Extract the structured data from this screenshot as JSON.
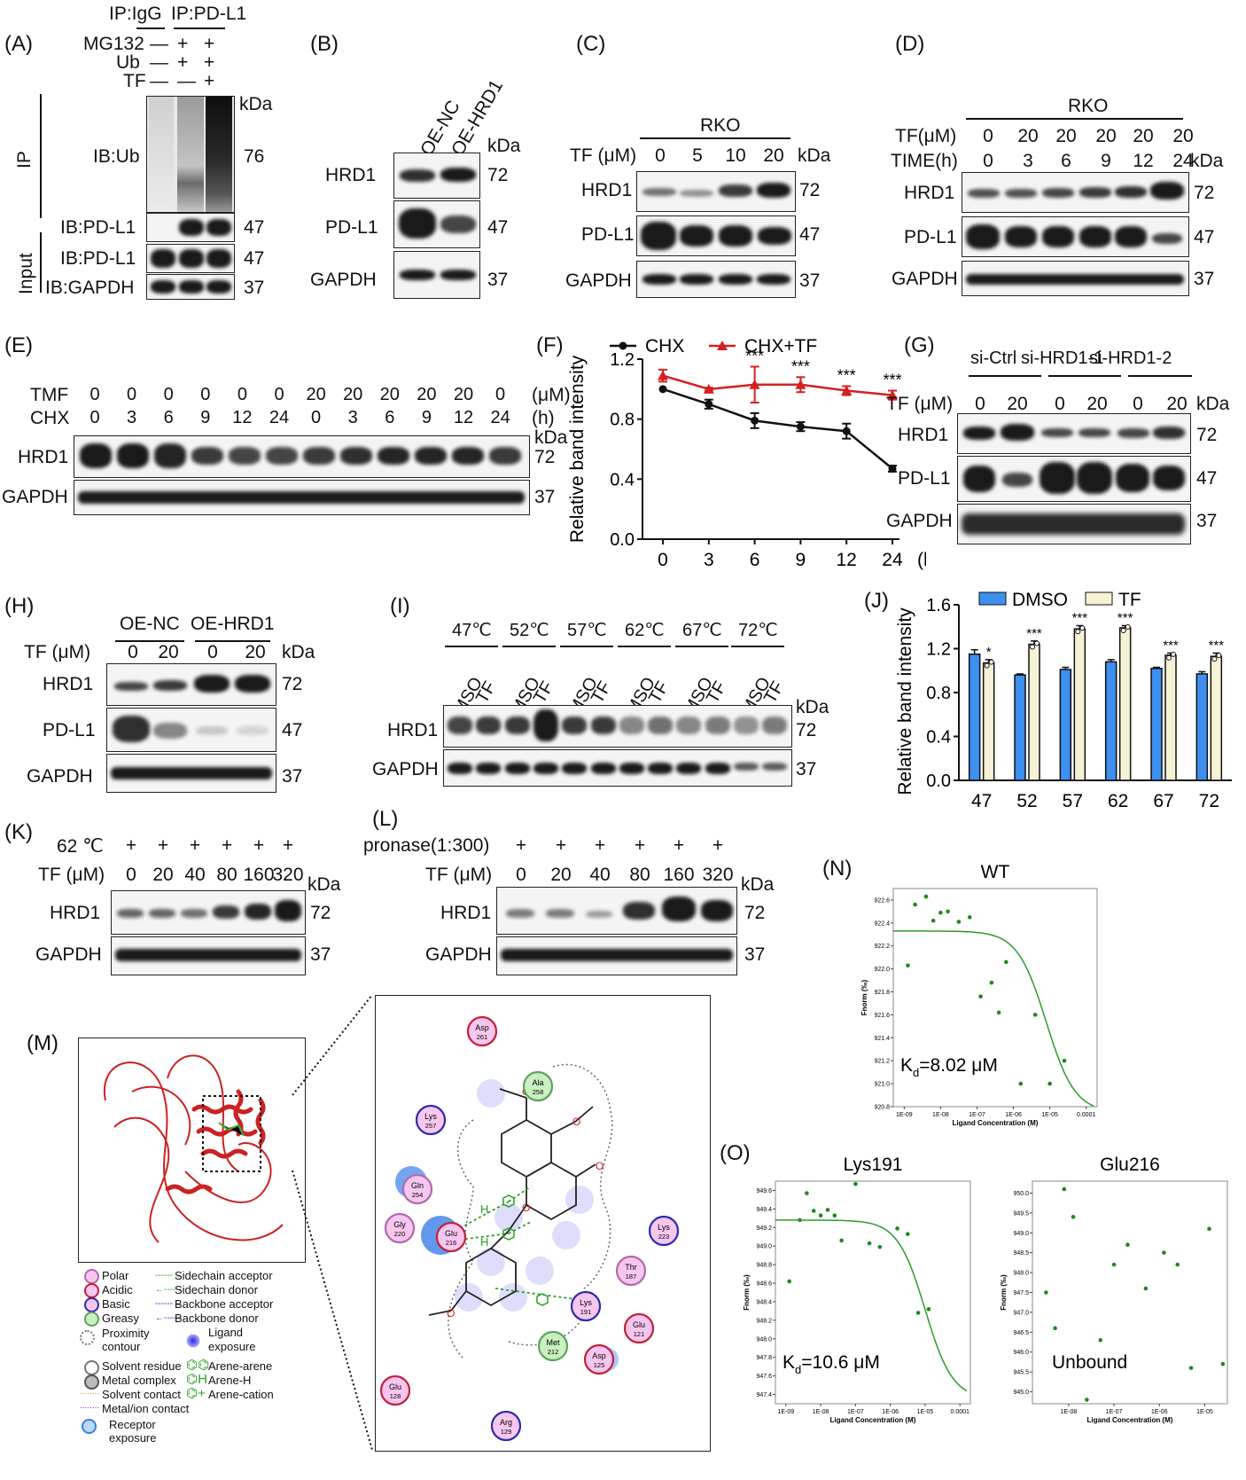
{
  "panels": {
    "A": "(A)",
    "B": "(B)",
    "C": "(C)",
    "D": "(D)",
    "E": "(E)",
    "F": "(F)",
    "G": "(G)",
    "H": "(H)",
    "I": "(I)",
    "J": "(J)",
    "K": "(K)",
    "L": "(L)",
    "M": "(M)",
    "N": "(N)",
    "O": "(O)"
  },
  "common": {
    "kda": "kDa",
    "k72": "72",
    "k47": "47",
    "k37": "37",
    "k76": "76",
    "hrd1": "HRD1",
    "pdl1": "PD-L1",
    "gapdh": "GAPDH"
  },
  "A": {
    "ip_igg": "IP:IgG",
    "ip_pdl1": "IP:PD-L1",
    "mg132": "MG132",
    "ub": "Ub",
    "tf": "TF",
    "mg132_vals": [
      "—",
      "+",
      "+"
    ],
    "ub_vals": [
      "—",
      "+",
      "+"
    ],
    "tf_vals": [
      "—",
      "—",
      "+"
    ],
    "ip": "IP",
    "input": "Input",
    "ib_ub": "IB:Ub",
    "ib_pdl1": "IB:PD-L1",
    "ib_pdl1_input": "IB:PD-L1",
    "ib_gapdh": "IB:GAPDH"
  },
  "B": {
    "oe_nc": "OE-NC",
    "oe_hrd1": "OE-HRD1"
  },
  "C": {
    "cell": "RKO",
    "tf_label": "TF (μM)",
    "doses": [
      "0",
      "5",
      "10",
      "20"
    ]
  },
  "D": {
    "cell": "RKO",
    "tf_label": "TF(μM)",
    "time_label": "TIME(h)",
    "tf_vals": [
      "0",
      "20",
      "20",
      "20",
      "20",
      "20"
    ],
    "time_vals": [
      "0",
      "3",
      "6",
      "9",
      "12",
      "24"
    ]
  },
  "E": {
    "tmf_label": "TMF",
    "chx_label": "CHX",
    "um": "(μM)",
    "h": "(h)",
    "tmf_vals": [
      "0",
      "0",
      "0",
      "0",
      "0",
      "0",
      "20",
      "20",
      "20",
      "20",
      "20",
      "0"
    ],
    "chx_vals": [
      "0",
      "3",
      "6",
      "9",
      "12",
      "24",
      "0",
      "3",
      "6",
      "9",
      "12",
      "24"
    ]
  },
  "G": {
    "groups": [
      "si-Ctrl",
      "si-HRD1-1",
      "si-HRD1-2"
    ],
    "tf_label": "TF (μM)",
    "doses": [
      "0",
      "20",
      "0",
      "20",
      "0",
      "20"
    ]
  },
  "H": {
    "groups": [
      "OE-NC",
      "OE-HRD1"
    ],
    "tf_label": "TF (μM)",
    "doses": [
      "0",
      "20",
      "0",
      "20"
    ]
  },
  "I": {
    "temps": [
      "47℃",
      "52℃",
      "57℃",
      "62℃",
      "67℃",
      "72℃"
    ],
    "lanes": [
      "DMSO",
      "TF"
    ]
  },
  "K": {
    "temp_label": "62 ℃",
    "tf_label": "TF (μM)",
    "plus": "+",
    "doses": [
      "0",
      "20",
      "40",
      "80",
      "160",
      "320"
    ]
  },
  "L": {
    "pronase_label": "pronase(1:300)",
    "tf_label": "TF (μM)",
    "plus": "+",
    "doses": [
      "0",
      "20",
      "40",
      "80",
      "160",
      "320"
    ]
  },
  "M": {
    "residues": [
      {
        "name": "Asp",
        "num": "261",
        "type": "acidic"
      },
      {
        "name": "Ala",
        "num": "258",
        "type": "greasy"
      },
      {
        "name": "Lys",
        "num": "257",
        "type": "basic"
      },
      {
        "name": "Gln",
        "num": "254",
        "type": "polar"
      },
      {
        "name": "Gly",
        "num": "220",
        "type": "polar"
      },
      {
        "name": "Glu",
        "num": "216",
        "type": "acidic"
      },
      {
        "name": "Lys",
        "num": "223",
        "type": "basic"
      },
      {
        "name": "Thr",
        "num": "187",
        "type": "polar"
      },
      {
        "name": "Lys",
        "num": "191",
        "type": "basic"
      },
      {
        "name": "Glu",
        "num": "121",
        "type": "acidic"
      },
      {
        "name": "Met",
        "num": "212",
        "type": "greasy"
      },
      {
        "name": "Asp",
        "num": "125",
        "type": "acidic"
      },
      {
        "name": "Glu",
        "num": "128",
        "type": "acidic"
      },
      {
        "name": "Arg",
        "num": "129",
        "type": "basic"
      }
    ],
    "legend": {
      "polar": "Polar",
      "acidic": "Acidic",
      "basic": "Basic",
      "greasy": "Greasy",
      "proximity": "Proximity",
      "contour": "contour",
      "solvent_residue": "Solvent residue",
      "metal_complex": "Metal complex",
      "solvent_contact": "Solvent contact",
      "metal_contact": "Metal/ion contact",
      "receptor": "Receptor",
      "exposure": "exposure",
      "sc_acceptor": "Sidechain acceptor",
      "sc_donor": "Sidechain donor",
      "bb_acceptor": "Backbone acceptor",
      "bb_donor": "Backbone donor",
      "ligand": "Ligand",
      "ligand_exposure": "exposure",
      "arene_arene": "Arene-arene",
      "arene_h": "Arene-H",
      "arene_cation": "Arene-cation"
    },
    "h_label": "H"
  },
  "colors": {
    "chx": "#111111",
    "chx_tf": "#d42020",
    "dmso": "#3d8ff0",
    "tf_bar": "#f6f2d6",
    "fit": "#2e9a2e",
    "point": "#1d8a1d"
  },
  "chart_data": [
    {
      "id": "F",
      "type": "line",
      "x": [
        0,
        3,
        6,
        9,
        12,
        24
      ],
      "xticks": [
        "0",
        "3",
        "6",
        "9",
        "12",
        "24"
      ],
      "xunit": "(h)",
      "ylabel": "Relative band intensity",
      "ylim": [
        0.0,
        1.2
      ],
      "yticks": [
        "0.0",
        "0.4",
        "0.8",
        "1.2"
      ],
      "series": [
        {
          "name": "CHX",
          "values": [
            1.0,
            0.9,
            0.79,
            0.75,
            0.72,
            0.47
          ],
          "err": [
            0.0,
            0.03,
            0.05,
            0.03,
            0.05,
            0.02
          ]
        },
        {
          "name": "CHX+TF",
          "values": [
            1.09,
            1.0,
            1.03,
            1.03,
            0.99,
            0.96
          ],
          "err": [
            0.04,
            0.01,
            0.12,
            0.05,
            0.03,
            0.03
          ]
        }
      ],
      "annotations": [
        "",
        "",
        "***",
        "***",
        "***",
        "***"
      ]
    },
    {
      "id": "J",
      "type": "bar",
      "categories": [
        "47",
        "52",
        "57",
        "62",
        "67",
        "72"
      ],
      "ylabel": "Relative band intensity",
      "ylim": [
        0.0,
        1.6
      ],
      "yticks": [
        "0.0",
        "0.4",
        "0.8",
        "1.2",
        "1.6"
      ],
      "series": [
        {
          "name": "DMSO",
          "values": [
            1.15,
            0.96,
            1.01,
            1.08,
            1.02,
            0.97
          ],
          "err": [
            0.04,
            0.01,
            0.02,
            0.02,
            0.01,
            0.02
          ]
        },
        {
          "name": "TF",
          "values": [
            1.07,
            1.24,
            1.38,
            1.39,
            1.14,
            1.13
          ],
          "err": [
            0.03,
            0.03,
            0.03,
            0.02,
            0.02,
            0.03
          ]
        }
      ],
      "annotations": [
        "*",
        "***",
        "***",
        "***",
        "***",
        "***"
      ]
    },
    {
      "id": "N",
      "type": "scatter",
      "title": "WT",
      "xlabel": "Ligand Concentration (M)",
      "ylabel": "Fnorm (‰)",
      "xticks": [
        "1E-09",
        "1E-08",
        "1E-07",
        "1E-06",
        "1E-05",
        "0.0001"
      ],
      "yticks": [
        "920.8",
        "921.0",
        "921.2",
        "921.4",
        "921.6",
        "921.8",
        "922.0",
        "922.2",
        "922.4",
        "922.6"
      ],
      "ylim": [
        920.8,
        922.7
      ],
      "points_log10x": [
        -8.9,
        -8.7,
        -8.4,
        -8.2,
        -8.0,
        -7.8,
        -7.5,
        -7.2,
        -6.9,
        -6.6,
        -6.4,
        -6.2,
        -5.8,
        -5.4,
        -5.0,
        -4.6
      ],
      "points_y": [
        922.03,
        922.56,
        922.63,
        922.42,
        922.49,
        922.5,
        922.41,
        922.45,
        921.76,
        921.88,
        921.62,
        922.06,
        921.0,
        921.6,
        921.0,
        921.2
      ],
      "fit": {
        "top": 922.33,
        "bottom": 920.75,
        "log10kd": -5.1
      },
      "kd_label": "K",
      "kd_sub": "d",
      "kd_value": "=8.02 μM"
    },
    {
      "id": "O1",
      "type": "scatter",
      "title": "Lys191",
      "xlabel": "Ligand Concentration (M)",
      "ylabel": "Fnorm (‰)",
      "xticks": [
        "1E-09",
        "1E-08",
        "1E-07",
        "1E-06",
        "1E-05",
        "0.0001"
      ],
      "yticks": [
        "947.4",
        "947.6",
        "947.8",
        "948.0",
        "948.2",
        "948.4",
        "948.6",
        "948.8",
        "949.0",
        "949.2",
        "949.4",
        "949.6"
      ],
      "ylim": [
        947.3,
        949.7
      ],
      "points_log10x": [
        -8.9,
        -8.6,
        -8.4,
        -8.2,
        -8.0,
        -7.8,
        -7.6,
        -7.4,
        -7.0,
        -6.6,
        -6.3,
        -5.8,
        -5.5,
        -5.2,
        -4.9
      ],
      "points_y": [
        948.62,
        949.28,
        949.57,
        949.38,
        949.33,
        949.39,
        949.33,
        949.06,
        949.67,
        949.03,
        948.99,
        949.19,
        949.13,
        948.28,
        948.32
      ],
      "fit": {
        "top": 949.28,
        "bottom": 947.35,
        "log10kd": -5.0
      },
      "kd_label": "K",
      "kd_sub": "d",
      "kd_value": "=10.6 μM"
    },
    {
      "id": "O2",
      "type": "scatter",
      "title": "Glu216",
      "xlabel": "Ligand Concentration (M)",
      "ylabel": "Fnorm (‰)",
      "xticks": [
        "1E-08",
        "1E-07",
        "1E-06",
        "1E-05"
      ],
      "yticks": [
        "945.0",
        "945.5",
        "946.0",
        "946.5",
        "947.0",
        "947.5",
        "948.0",
        "948.5",
        "949.0",
        "949.5",
        "950.0"
      ],
      "ylim": [
        944.7,
        950.3
      ],
      "points_log10x": [
        -8.5,
        -8.3,
        -8.1,
        -7.9,
        -7.6,
        -7.3,
        -7.0,
        -6.7,
        -6.3,
        -5.9,
        -5.6,
        -5.3,
        -4.9
      ],
      "points_y": [
        947.5,
        946.6,
        950.1,
        949.4,
        944.8,
        946.3,
        948.2,
        948.7,
        947.6,
        948.5,
        948.2,
        945.6,
        949.1
      ],
      "extra": {
        "log10x": -4.6,
        "y": 945.7
      },
      "label": "Unbound"
    }
  ]
}
